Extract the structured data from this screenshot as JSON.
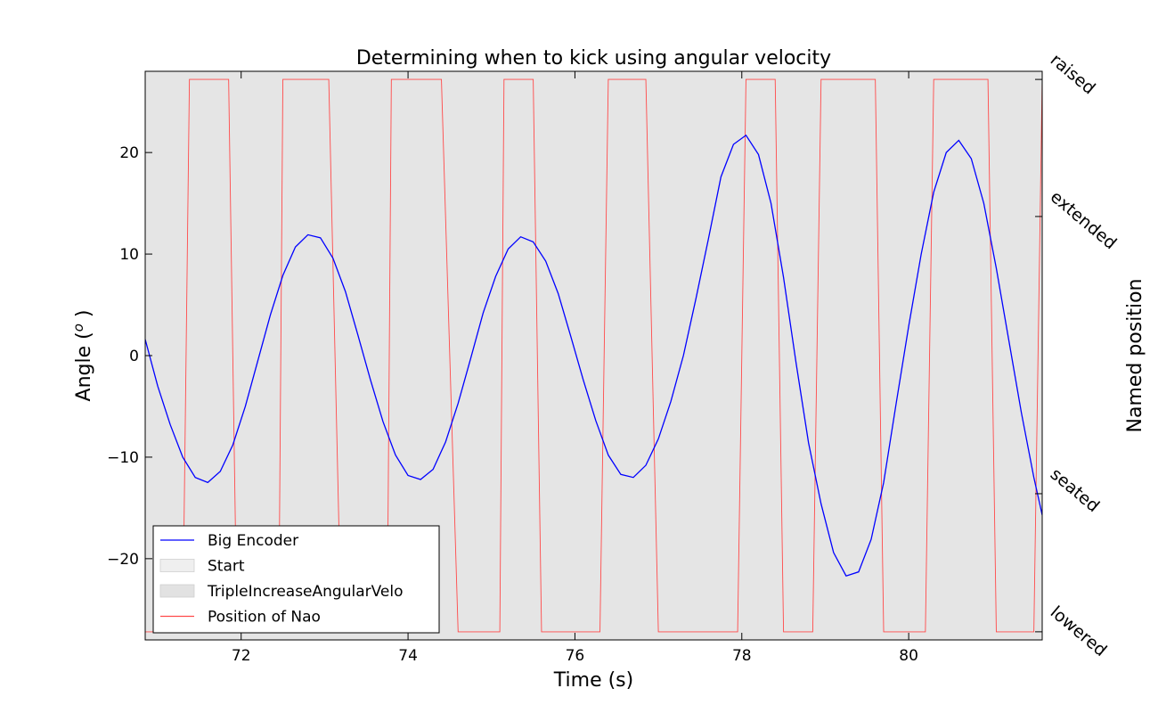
{
  "chart_data": {
    "type": "line",
    "title": "Determining when to kick using angular velocity",
    "xlabel": "Time (s)",
    "ylabel_prefix": "Angle",
    "ylabel_unit_open": " (",
    "ylabel_unit_sup": "o",
    "ylabel_unit_close": " )",
    "right_ylabel": "Named position",
    "xlim": [
      70.85,
      81.6
    ],
    "ylim": [
      -28,
      28
    ],
    "x_ticks": [
      72,
      74,
      76,
      78,
      80
    ],
    "y_ticks": [
      -20,
      -10,
      0,
      10,
      20
    ],
    "x_tick_labels": [
      "72",
      "74",
      "76",
      "78",
      "80"
    ],
    "y_tick_labels": [
      "−20",
      "−10",
      "0",
      "10",
      "20"
    ],
    "background_color": "#e5e5e5",
    "grid": false,
    "legend_position": "lower-left",
    "named_positions": [
      {
        "label": "raised",
        "value": 27.2
      },
      {
        "label": "extended",
        "value": 13.7
      },
      {
        "label": "seated",
        "value": -13.6
      },
      {
        "label": "lowered",
        "value": -27.2
      }
    ],
    "legend": [
      {
        "label": "Big Encoder",
        "kind": "line",
        "color": "#0000ff"
      },
      {
        "label": "Start",
        "kind": "patch",
        "color": "#efefef"
      },
      {
        "label": "TripleIncreaseAngularVelo",
        "kind": "patch",
        "color": "#e2e2e2"
      },
      {
        "label": "Position of Nao",
        "kind": "line",
        "color": "#ff4a4a"
      }
    ],
    "series": [
      {
        "name": "Big Encoder",
        "color": "#0000ff",
        "x": [
          70.85,
          71.0,
          71.15,
          71.3,
          71.45,
          71.6,
          71.75,
          71.9,
          72.05,
          72.2,
          72.35,
          72.5,
          72.65,
          72.8,
          72.95,
          73.1,
          73.25,
          73.4,
          73.55,
          73.7,
          73.85,
          74.0,
          74.15,
          74.3,
          74.45,
          74.6,
          74.75,
          74.9,
          75.05,
          75.2,
          75.35,
          75.5,
          75.65,
          75.8,
          75.95,
          76.1,
          76.25,
          76.4,
          76.55,
          76.7,
          76.85,
          77.0,
          77.15,
          77.3,
          77.45,
          77.6,
          77.75,
          77.9,
          78.05,
          78.2,
          78.35,
          78.5,
          78.65,
          78.8,
          78.95,
          79.1,
          79.25,
          79.4,
          79.55,
          79.7,
          79.85,
          80.0,
          80.15,
          80.3,
          80.45,
          80.6,
          80.75,
          80.9,
          81.05,
          81.2,
          81.35,
          81.5,
          81.6
        ],
        "y": [
          1.6,
          -3.0,
          -6.8,
          -10.0,
          -12.0,
          -12.5,
          -11.4,
          -8.8,
          -5.0,
          -0.5,
          4.0,
          7.9,
          10.7,
          11.9,
          11.6,
          9.6,
          6.3,
          2.0,
          -2.4,
          -6.5,
          -9.8,
          -11.8,
          -12.2,
          -11.2,
          -8.5,
          -4.7,
          -0.3,
          4.2,
          7.8,
          10.5,
          11.7,
          11.2,
          9.3,
          6.1,
          1.9,
          -2.4,
          -6.4,
          -9.8,
          -11.7,
          -12.0,
          -10.8,
          -8.2,
          -4.5,
          0.0,
          5.6,
          11.5,
          17.6,
          20.8,
          21.7,
          19.8,
          15.0,
          7.7,
          -0.7,
          -8.6,
          -14.6,
          -19.4,
          -21.7,
          -21.3,
          -18.1,
          -12.5,
          -4.7,
          2.9,
          10.0,
          16.1,
          20.0,
          21.2,
          19.4,
          15.0,
          8.6,
          1.5,
          -5.6,
          -12.0,
          -15.7
        ]
      },
      {
        "name": "Position of Nao",
        "color": "#ff4a4a",
        "x": [
          70.85,
          71.3,
          71.38,
          71.85,
          71.95,
          72.45,
          72.5,
          73.05,
          73.2,
          73.75,
          73.8,
          74.4,
          74.6,
          75.1,
          75.15,
          75.5,
          75.6,
          76.3,
          76.4,
          76.85,
          77.0,
          77.95,
          78.05,
          78.4,
          78.5,
          78.85,
          78.95,
          79.6,
          79.7,
          80.2,
          80.3,
          80.95,
          81.05,
          81.5,
          81.6
        ],
        "y": [
          -27.2,
          -27.2,
          27.2,
          27.2,
          -27.2,
          -27.2,
          27.2,
          27.2,
          -27.2,
          -27.2,
          27.2,
          27.2,
          -27.2,
          -27.2,
          27.2,
          27.2,
          -27.2,
          -27.2,
          27.2,
          27.2,
          -27.2,
          -27.2,
          27.2,
          27.2,
          -27.2,
          -27.2,
          27.2,
          27.2,
          -27.2,
          -27.2,
          27.2,
          27.2,
          -27.2,
          -27.2,
          27.2
        ]
      }
    ]
  }
}
